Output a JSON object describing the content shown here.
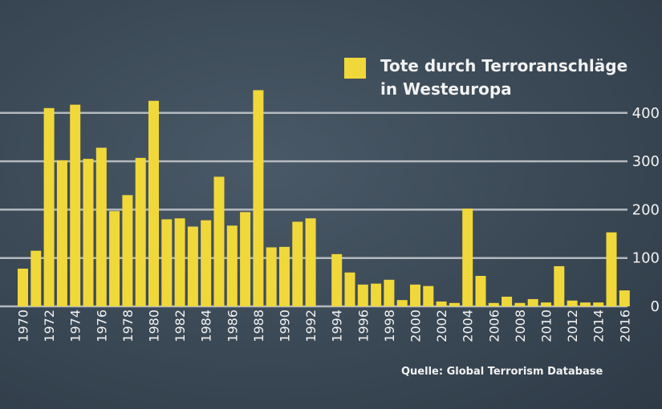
{
  "chart_data": {
    "type": "bar",
    "title": "",
    "legend": [
      {
        "label_line1": "Tote durch Terroranschläge",
        "label_line2": "in Westeuropa",
        "color": "#f0d83a"
      }
    ],
    "legend_position": "top-right",
    "xlabel": "",
    "ylabel": "",
    "ylim": [
      0,
      450
    ],
    "yticks": [
      0,
      100,
      200,
      300,
      400
    ],
    "y_axis_side": "right",
    "grid": true,
    "categories": [
      1970,
      1971,
      1972,
      1973,
      1974,
      1975,
      1976,
      1977,
      1978,
      1979,
      1980,
      1981,
      1982,
      1983,
      1984,
      1985,
      1986,
      1987,
      1988,
      1989,
      1990,
      1991,
      1992,
      1993,
      1994,
      1995,
      1996,
      1997,
      1998,
      1999,
      2000,
      2001,
      2002,
      2003,
      2004,
      2005,
      2006,
      2007,
      2008,
      2009,
      2010,
      2011,
      2012,
      2013,
      2014,
      2015,
      2016
    ],
    "xtick_labels": [
      "1970",
      "1972",
      "1974",
      "1976",
      "1978",
      "1980",
      "1982",
      "1984",
      "1986",
      "1988",
      "1990",
      "1992",
      "1994",
      "1996",
      "1998",
      "2000",
      "2002",
      "2004",
      "2006",
      "2008",
      "2010",
      "2012",
      "2014",
      "2016"
    ],
    "values": [
      78,
      115,
      410,
      302,
      417,
      305,
      328,
      197,
      230,
      307,
      425,
      180,
      182,
      165,
      178,
      268,
      167,
      195,
      447,
      122,
      123,
      175,
      182,
      0,
      108,
      70,
      45,
      47,
      55,
      13,
      45,
      42,
      10,
      7,
      202,
      63,
      7,
      20,
      7,
      15,
      8,
      83,
      12,
      8,
      8,
      153,
      33
    ],
    "bar_color": "#f0d83a",
    "source": "Quelle: Global Terrorism Database"
  }
}
